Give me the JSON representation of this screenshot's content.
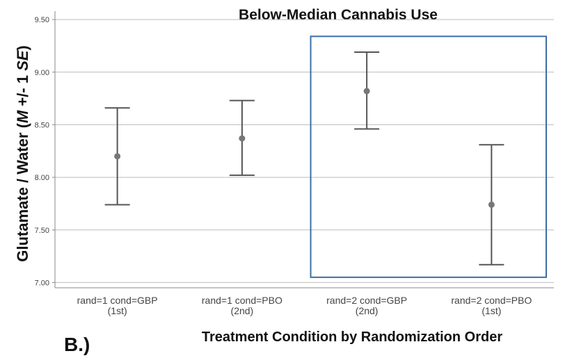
{
  "panel_label": "B.)",
  "chart_data": {
    "type": "errorbar",
    "title": "Below-Median Cannabis Use",
    "xlabel": "Treatment Condition by Randomization Order",
    "ylabel": {
      "parts": [
        {
          "text": "Glutamate / Water (",
          "italic": false
        },
        {
          "text": "M",
          "italic": true
        },
        {
          "text": " +/- 1 ",
          "italic": false
        },
        {
          "text": "SE",
          "italic": true
        },
        {
          "text": ")",
          "italic": false
        }
      ]
    },
    "ylim": [
      6.95,
      9.58
    ],
    "yticks": [
      "7.00",
      "7.50",
      "8.00",
      "8.50",
      "9.00",
      "9.50"
    ],
    "grid": true,
    "categories": [
      {
        "line1": "rand=1 cond=GBP",
        "line2": "(1st)"
      },
      {
        "line1": "rand=1 cond=PBO",
        "line2": "(2nd)"
      },
      {
        "line1": "rand=2 cond=GBP",
        "line2": "(2nd)"
      },
      {
        "line1": "rand=2 cond=PBO",
        "line2": "(1st)"
      }
    ],
    "means": [
      8.2,
      8.37,
      8.82,
      7.74
    ],
    "lower": [
      7.74,
      8.02,
      8.46,
      7.17
    ],
    "upper": [
      8.66,
      8.73,
      9.19,
      8.31
    ],
    "highlight_box": {
      "categories": [
        2,
        3
      ],
      "y_range": [
        7.05,
        9.34
      ]
    },
    "colors": {
      "errorbar": "#555555",
      "point": "#777777",
      "grid": "#bbbbbb",
      "axis": "#888888",
      "highlight": "#3a6ea5"
    }
  }
}
